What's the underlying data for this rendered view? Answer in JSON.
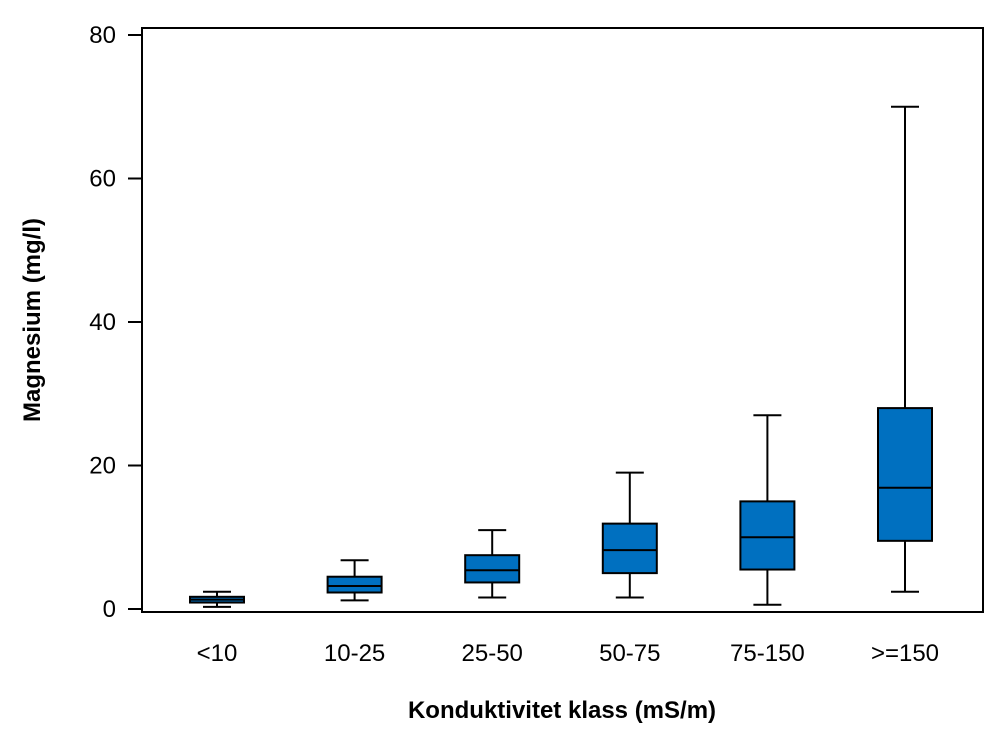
{
  "chart_data": {
    "type": "boxplot",
    "title": "",
    "xlabel": "Konduktivitet klass (mS/m)",
    "ylabel": "Magnesium (mg/l)",
    "ylim": [
      0,
      80
    ],
    "yticks": [
      {
        "value": 0,
        "label": "0"
      },
      {
        "value": 20,
        "label": "20"
      },
      {
        "value": 40,
        "label": "40"
      },
      {
        "value": 60,
        "label": "60"
      },
      {
        "value": 80,
        "label": "80"
      }
    ],
    "categories": [
      "<10",
      "10-25",
      "25-50",
      "50-75",
      "75-150",
      ">=150"
    ],
    "boxes": [
      {
        "category": "<10",
        "min": 0.3,
        "q1": 0.9,
        "median": 1.3,
        "q3": 1.7,
        "max": 2.4
      },
      {
        "category": "10-25",
        "min": 1.2,
        "q1": 2.3,
        "median": 3.2,
        "q3": 4.5,
        "max": 6.8
      },
      {
        "category": "25-50",
        "min": 1.6,
        "q1": 3.7,
        "median": 5.4,
        "q3": 7.5,
        "max": 11.0
      },
      {
        "category": "50-75",
        "min": 1.6,
        "q1": 5.0,
        "median": 8.2,
        "q3": 11.9,
        "max": 19.0
      },
      {
        "category": "75-150",
        "min": 0.6,
        "q1": 5.5,
        "median": 10.0,
        "q3": 15.0,
        "max": 27.0
      },
      {
        "category": ">=150",
        "min": 2.4,
        "q1": 9.5,
        "median": 16.9,
        "q3": 28.0,
        "max": 70.0
      }
    ],
    "box_color": "#0070C0",
    "line_color": "#000000",
    "grid": false,
    "legend": "none"
  }
}
